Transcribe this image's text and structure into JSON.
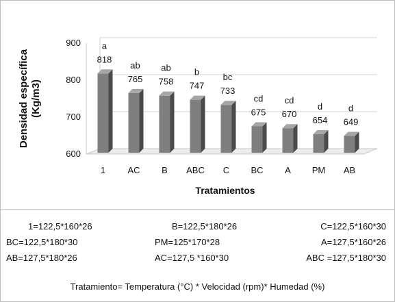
{
  "chart_data": {
    "type": "bar",
    "categories": [
      "1",
      "AC",
      "B",
      "ABC",
      "C",
      "BC",
      "A",
      "PM",
      "AB"
    ],
    "values": [
      818,
      765,
      758,
      747,
      733,
      675,
      670,
      654,
      649
    ],
    "value_labels": [
      "818",
      "765",
      "758",
      "747",
      "733",
      "675",
      "670",
      "654",
      "649"
    ],
    "group_letters": [
      "a",
      "ab",
      "ab",
      "b",
      "bc",
      "cd",
      "cd",
      "d",
      "d"
    ],
    "ylabel_lines": [
      "Densidad  específica",
      "(Kg/m3)"
    ],
    "xlabel": "Tratamientos",
    "yticks": [
      600,
      700,
      800,
      900
    ],
    "ylim": [
      600,
      900
    ],
    "grid": true,
    "bar_color": "#7f7f7f"
  },
  "legend": [
    [
      "1=122,5*160*26",
      "B=122,5*180*26",
      "C=122,5*160*30"
    ],
    [
      "BC=122,5*180*30",
      "PM=125*170*28",
      "A=127,5*160*26"
    ],
    [
      "AB=127,5*180*26",
      "AC=127,5 *160*30",
      "ABC =127,5*180*30"
    ]
  ],
  "footnote": "Tratamiento= Temperatura  (°C) * Velocidad (rpm)* Humedad (%)"
}
